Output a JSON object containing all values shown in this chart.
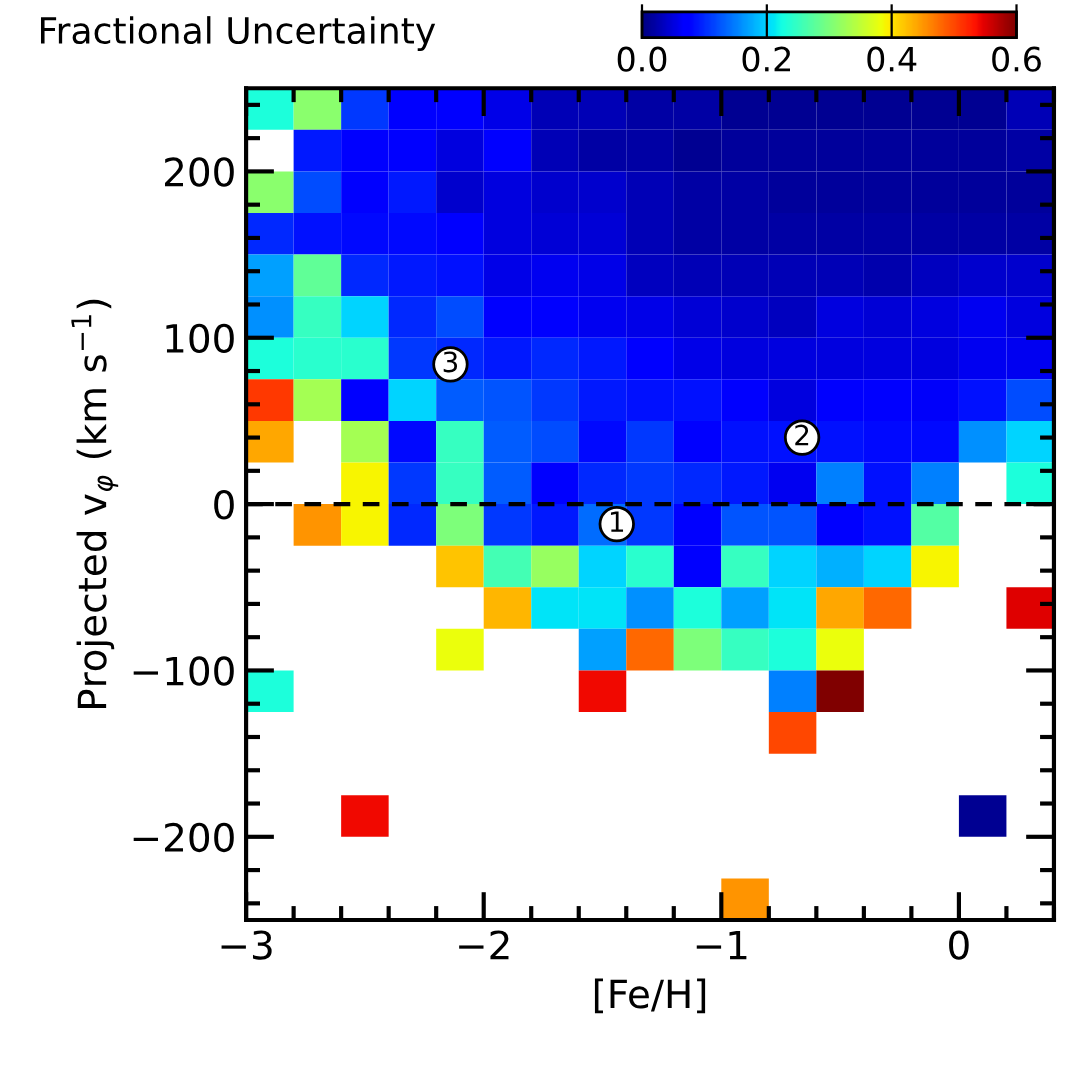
{
  "chart_data": {
    "type": "heatmap",
    "clabel": "Fractional Uncertainty",
    "xlabel": "[Fe/H]",
    "ylabel": "Projected v$_{φ}$ (km s$^{−1}$)",
    "x": [
      -2.9,
      -2.7,
      -2.5,
      -2.3,
      -2.1,
      -1.9,
      -1.7,
      -1.5,
      -1.3,
      -1.1,
      -0.9,
      -0.7,
      -0.5,
      -0.3,
      -0.1,
      0.1,
      0.3
    ],
    "y": [
      237.5,
      212.5,
      187.5,
      162.5,
      137.5,
      112.5,
      87.5,
      62.5,
      37.5,
      12.5,
      -12.5,
      -37.5,
      -62.5,
      -87.5,
      -112.5,
      -137.5,
      -187.5,
      -237.5
    ],
    "cells": [
      [
        0.23,
        0.31,
        0.11,
        0.075,
        0.07,
        0.055,
        0.03,
        0.03,
        0.02,
        0.02,
        0.01,
        0.01,
        0.01,
        0.01,
        0.01,
        0.01,
        0.03
      ],
      [
        null,
        0.09,
        0.075,
        0.075,
        0.05,
        0.07,
        0.03,
        0.02,
        0.02,
        0.01,
        0.015,
        0.015,
        0.015,
        0.015,
        0.015,
        0.015,
        0.02
      ],
      [
        0.31,
        0.12,
        0.075,
        0.09,
        0.04,
        0.05,
        0.04,
        0.04,
        0.03,
        0.02,
        0.02,
        0.015,
        0.015,
        0.015,
        0.015,
        0.015,
        0.015
      ],
      [
        0.1,
        0.085,
        0.08,
        0.08,
        0.075,
        0.05,
        0.045,
        0.045,
        0.03,
        0.02,
        0.02,
        0.02,
        0.02,
        0.02,
        0.02,
        0.02,
        0.02
      ],
      [
        0.17,
        0.28,
        0.1,
        0.09,
        0.085,
        0.055,
        0.06,
        0.055,
        0.035,
        0.03,
        0.03,
        0.03,
        0.03,
        0.025,
        0.035,
        0.04,
        0.04
      ],
      [
        0.16,
        0.25,
        0.2,
        0.1,
        0.12,
        0.075,
        0.07,
        0.06,
        0.055,
        0.045,
        0.04,
        0.035,
        0.05,
        0.045,
        0.05,
        0.06,
        0.05
      ],
      [
        0.23,
        0.24,
        0.24,
        0.11,
        0.1,
        0.09,
        0.1,
        0.09,
        0.07,
        0.055,
        0.05,
        0.05,
        0.05,
        0.05,
        0.05,
        0.06,
        0.06
      ],
      [
        0.51,
        0.33,
        0.075,
        0.2,
        0.13,
        0.125,
        0.11,
        0.09,
        0.085,
        0.085,
        0.075,
        0.05,
        0.075,
        0.075,
        0.065,
        0.085,
        0.12
      ],
      [
        0.44,
        null,
        0.33,
        0.08,
        0.25,
        0.13,
        0.12,
        0.08,
        0.11,
        0.07,
        0.085,
        0.085,
        0.085,
        0.08,
        0.08,
        0.16,
        0.2
      ],
      [
        null,
        null,
        0.39,
        0.11,
        0.25,
        0.13,
        0.07,
        0.1,
        0.11,
        0.1,
        0.09,
        0.06,
        0.15,
        0.085,
        0.15,
        null,
        0.23
      ],
      [
        null,
        0.45,
        0.39,
        0.1,
        0.3,
        0.11,
        0.09,
        0.14,
        0.11,
        0.075,
        0.125,
        0.125,
        0.075,
        0.085,
        0.27,
        null,
        null
      ],
      [
        null,
        null,
        null,
        null,
        0.42,
        0.26,
        0.32,
        0.2,
        0.24,
        0.075,
        0.25,
        0.2,
        0.18,
        0.2,
        0.39,
        null,
        null
      ],
      [
        null,
        null,
        null,
        null,
        null,
        0.43,
        0.21,
        0.21,
        0.16,
        0.23,
        0.17,
        0.21,
        0.44,
        0.48,
        null,
        null,
        0.55
      ],
      [
        null,
        null,
        null,
        null,
        0.38,
        null,
        null,
        0.17,
        0.48,
        0.3,
        0.25,
        0.23,
        0.38,
        null,
        null,
        null,
        null
      ],
      [
        0.23,
        null,
        null,
        null,
        null,
        null,
        null,
        0.54,
        null,
        null,
        null,
        0.15,
        0.6,
        null,
        null,
        null,
        null
      ],
      [
        null,
        null,
        null,
        null,
        null,
        null,
        null,
        null,
        null,
        null,
        null,
        0.5,
        null,
        null,
        null,
        null,
        null
      ],
      [
        null,
        null,
        0.54,
        null,
        null,
        null,
        null,
        null,
        null,
        null,
        null,
        null,
        null,
        null,
        null,
        0.01,
        null
      ],
      [
        null,
        null,
        null,
        null,
        null,
        null,
        null,
        null,
        null,
        null,
        0.45,
        null,
        null,
        null,
        null,
        null,
        null
      ]
    ],
    "clim": [
      0,
      0.6
    ],
    "cticks": [
      {
        "value": 0,
        "label": "0.0"
      },
      {
        "value": 0.2,
        "label": "0.2"
      },
      {
        "value": 0.4,
        "label": "0.4"
      },
      {
        "value": 0.6,
        "label": "0.6"
      }
    ],
    "xlim": [
      -3,
      0.4
    ],
    "ylim": [
      -250,
      250
    ],
    "xticks": [
      {
        "value": -3,
        "label": "−3"
      },
      {
        "value": -2,
        "label": "−2"
      },
      {
        "value": -1,
        "label": "−1"
      },
      0
    ],
    "yticks": [
      {
        "value": -200,
        "label": "−200"
      },
      {
        "value": -100,
        "label": "−100"
      },
      0,
      100,
      200
    ],
    "ref_lines": [
      {
        "axis": "y",
        "value": 0,
        "color": "#000000",
        "line_style": "dashed"
      }
    ],
    "annotations": [
      {
        "text": "1",
        "x": -1.44,
        "y": -12
      },
      {
        "text": "2",
        "x": -0.66,
        "y": 40
      },
      {
        "text": "3",
        "x": -2.14,
        "y": 84
      }
    ]
  }
}
